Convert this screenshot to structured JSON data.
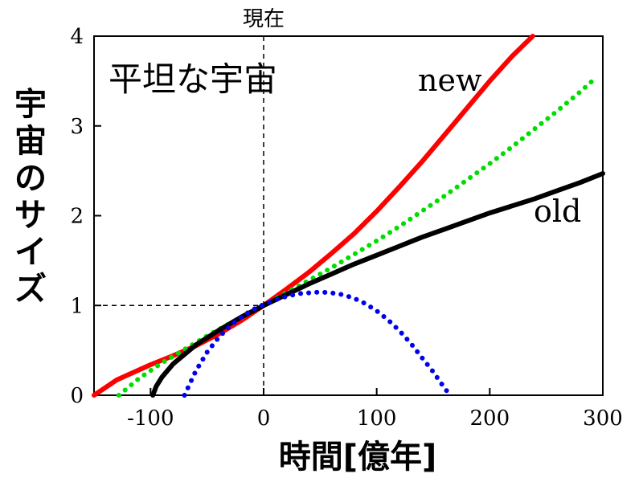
{
  "chart_data": {
    "type": "line",
    "title": "",
    "xlabel": "時間[億年]",
    "ylabel": "宇宙のサイズ",
    "xlim": [
      -150,
      300
    ],
    "ylim": [
      0,
      4
    ],
    "xticks": [
      -100,
      0,
      100,
      200,
      300
    ],
    "yticks": [
      0,
      1,
      2,
      3,
      4
    ],
    "grid": false,
    "annotations": {
      "present_label": "現在",
      "flat_universe_label": "平坦な宇宙",
      "new_label": "new",
      "old_label": "old"
    },
    "reference_lines": {
      "present_x": 0,
      "unit_size_y": 1
    },
    "series": [
      {
        "name": "new",
        "color": "#ff0000",
        "style": "solid",
        "x": [
          -150,
          -130,
          -100,
          -80,
          -60,
          -40,
          -20,
          0,
          20,
          40,
          60,
          80,
          100,
          120,
          140,
          160,
          180,
          200,
          220,
          238
        ],
        "y": [
          0,
          0.17,
          0.34,
          0.44,
          0.55,
          0.68,
          0.83,
          1.0,
          1.18,
          1.37,
          1.58,
          1.8,
          2.05,
          2.32,
          2.6,
          2.9,
          3.2,
          3.5,
          3.78,
          4.0
        ]
      },
      {
        "name": "",
        "color": "#00dd00",
        "style": "dotted",
        "x": [
          -128,
          -110,
          -90,
          -70,
          -50,
          -30,
          -10,
          0,
          20,
          40,
          60,
          80,
          100,
          120,
          140,
          160,
          180,
          200,
          220,
          240,
          260,
          280,
          295
        ],
        "y": [
          0,
          0.19,
          0.36,
          0.51,
          0.66,
          0.8,
          0.93,
          1.0,
          1.14,
          1.28,
          1.42,
          1.57,
          1.72,
          1.88,
          2.05,
          2.22,
          2.4,
          2.58,
          2.77,
          2.97,
          3.17,
          3.38,
          3.55
        ]
      },
      {
        "name": "old",
        "color": "#000000",
        "style": "solid",
        "x": [
          -98,
          -95,
          -90,
          -80,
          -60,
          -40,
          -20,
          0,
          20,
          40,
          60,
          80,
          100,
          120,
          140,
          160,
          180,
          200,
          220,
          240,
          260,
          280,
          300
        ],
        "y": [
          0,
          0.1,
          0.2,
          0.35,
          0.56,
          0.72,
          0.87,
          1.0,
          1.12,
          1.24,
          1.35,
          1.46,
          1.56,
          1.66,
          1.76,
          1.85,
          1.94,
          2.03,
          2.11,
          2.19,
          2.28,
          2.37,
          2.47
        ]
      },
      {
        "name": "",
        "color": "#0000ee",
        "style": "dotted",
        "x": [
          -70,
          -60,
          -50,
          -40,
          -30,
          -20,
          -10,
          0,
          10,
          20,
          30,
          40,
          50,
          60,
          70,
          80,
          90,
          100,
          110,
          120,
          130,
          140,
          150,
          160,
          165
        ],
        "y": [
          0,
          0.27,
          0.48,
          0.64,
          0.77,
          0.87,
          0.95,
          1.01,
          1.06,
          1.1,
          1.13,
          1.14,
          1.15,
          1.14,
          1.12,
          1.08,
          1.02,
          0.94,
          0.84,
          0.72,
          0.58,
          0.42,
          0.26,
          0.08,
          0
        ]
      }
    ]
  }
}
